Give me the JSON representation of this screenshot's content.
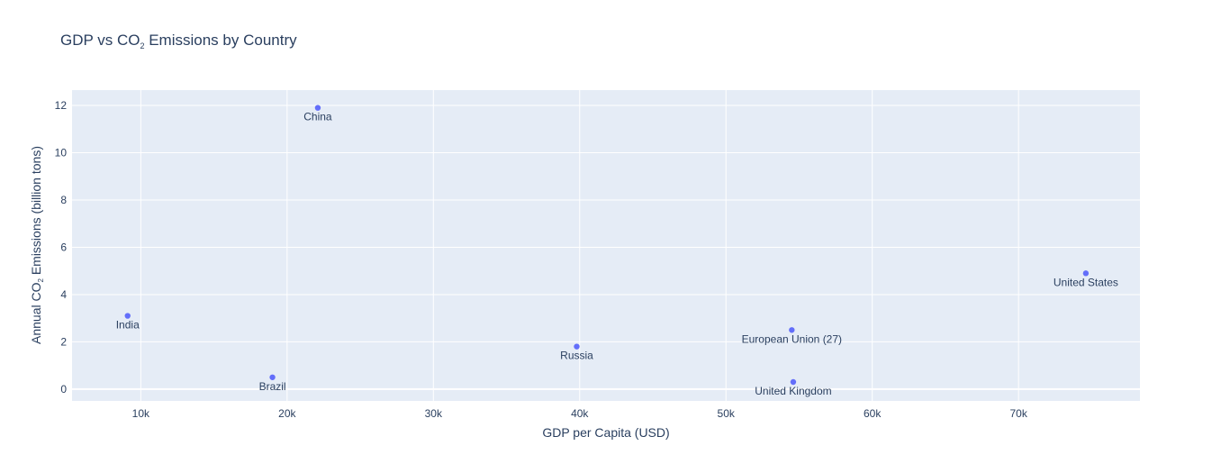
{
  "chart_data": {
    "type": "scatter",
    "title": "GDP vs CO₂ Emissions by Country",
    "xlabel": "GDP per Capita (USD)",
    "ylabel": "Annual CO₂ Emissions (billion tons)",
    "xlim": [
      5300,
      78300
    ],
    "ylim": [
      -0.5,
      12.65
    ],
    "xticks": [
      10000,
      20000,
      30000,
      40000,
      50000,
      60000,
      70000
    ],
    "xtick_labels": [
      "10k",
      "20k",
      "30k",
      "40k",
      "50k",
      "60k",
      "70k"
    ],
    "yticks": [
      0,
      2,
      4,
      6,
      8,
      10,
      12
    ],
    "ytick_labels": [
      "0",
      "2",
      "4",
      "6",
      "8",
      "10",
      "12"
    ],
    "grid": true,
    "marker_color": "#636efa",
    "points": [
      {
        "label": "China",
        "x": 22100,
        "y": 11.9
      },
      {
        "label": "United States",
        "x": 74600,
        "y": 4.9
      },
      {
        "label": "India",
        "x": 9100,
        "y": 3.1
      },
      {
        "label": "European Union (27)",
        "x": 54500,
        "y": 2.5
      },
      {
        "label": "Russia",
        "x": 39800,
        "y": 1.8
      },
      {
        "label": "Brazil",
        "x": 19000,
        "y": 0.5
      },
      {
        "label": "United Kingdom",
        "x": 54600,
        "y": 0.3
      }
    ]
  }
}
